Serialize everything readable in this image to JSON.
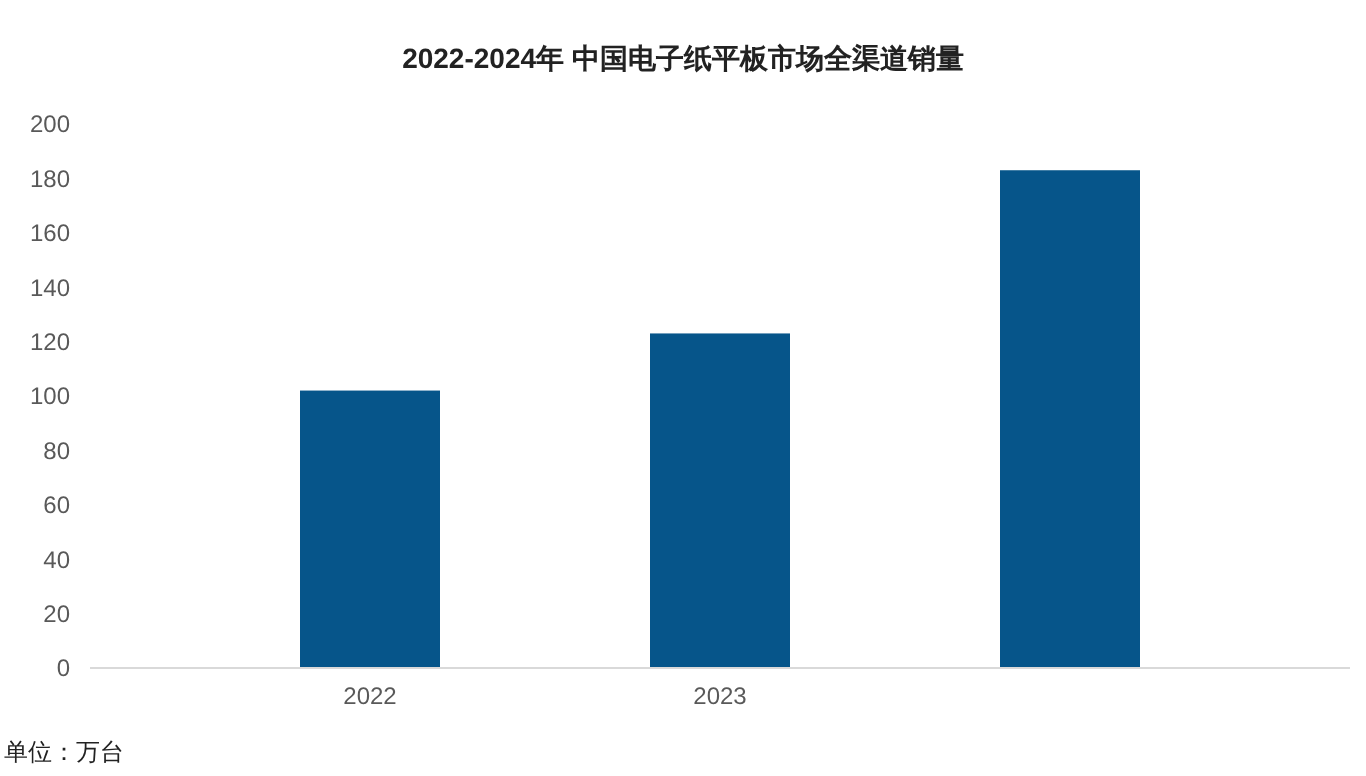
{
  "chart_data": {
    "type": "bar",
    "title": "2022-2024年 中国电子纸平板市场全渠道销量",
    "categories": [
      "2022",
      "2023",
      null
    ],
    "values": [
      102,
      123,
      183
    ],
    "color": "#06558a",
    "ylim": [
      0,
      200
    ],
    "yticks": [
      0,
      20,
      40,
      60,
      80,
      100,
      120,
      140,
      160,
      180,
      200
    ],
    "grid": false,
    "annotations": [
      "单位：万台"
    ]
  }
}
